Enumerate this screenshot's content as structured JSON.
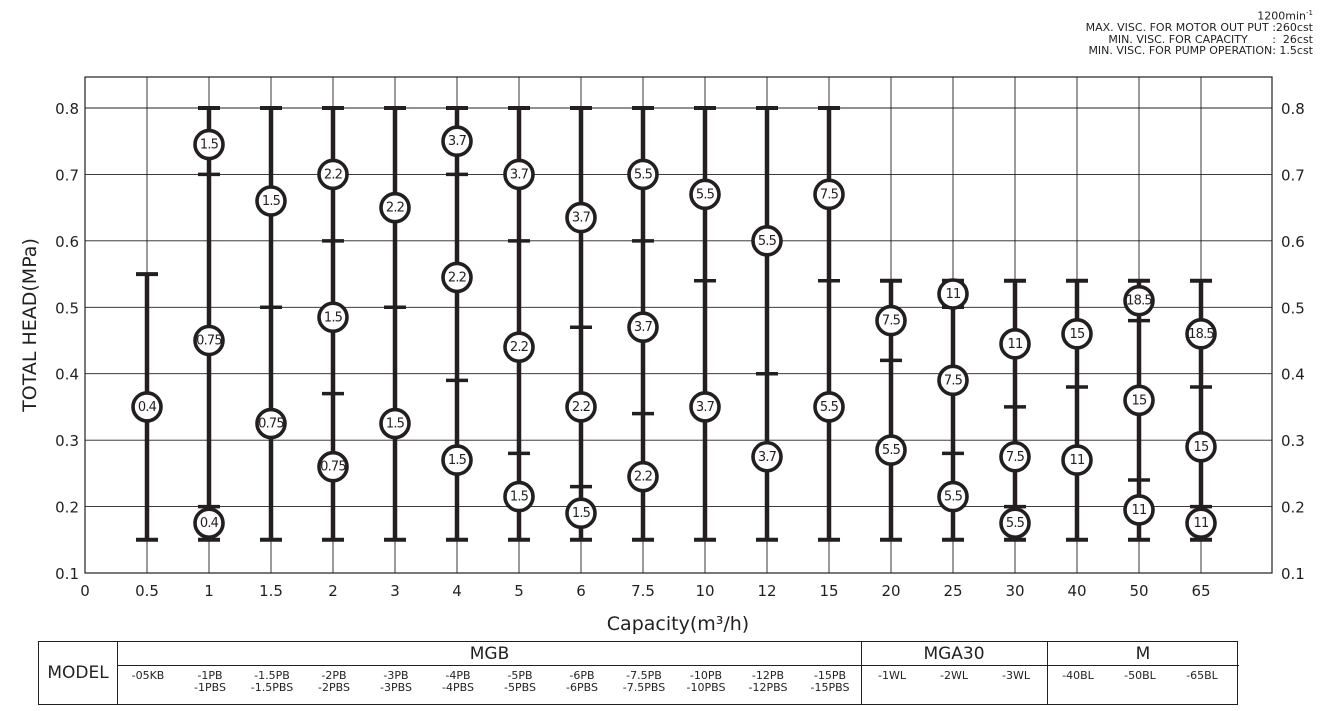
{
  "header": {
    "speed": "1200min",
    "speed_exp": "-1",
    "notes": [
      "MAX. VISC. FOR MOTOR OUT PUT :260cst",
      "MIN. VISC. FOR CAPACITY       :  26cst",
      "MIN. VISC. FOR PUMP OPERATION: 1.5cst"
    ]
  },
  "chart_data": {
    "type": "range-bar",
    "ylabel": "TOTAL HEAD(MPa)",
    "xlabel": "Capacity(m³/h)",
    "ylim": [
      0.1,
      0.8
    ],
    "yticks": [
      "0.1",
      "0.2",
      "0.3",
      "0.4",
      "0.5",
      "0.6",
      "0.7",
      "0.8"
    ],
    "xticks": [
      "0",
      "0.5",
      "1",
      "1.5",
      "2",
      "3",
      "4",
      "5",
      "6",
      "7.5",
      "10",
      "12",
      "15",
      "20",
      "25",
      "30",
      "40",
      "50",
      "65"
    ],
    "grid": true,
    "columns": [
      {
        "capacity": "0.5",
        "range": [
          0.15,
          0.55
        ],
        "dividers": [],
        "motors": [
          {
            "kw": "0.4",
            "head": 0.35
          }
        ]
      },
      {
        "capacity": "1",
        "range": [
          0.15,
          0.8
        ],
        "dividers": [
          0.2,
          0.7
        ],
        "motors": [
          {
            "kw": "0.4",
            "head": 0.175
          },
          {
            "kw": "0.75",
            "head": 0.45
          },
          {
            "kw": "1.5",
            "head": 0.745
          }
        ]
      },
      {
        "capacity": "1.5",
        "range": [
          0.15,
          0.8
        ],
        "dividers": [
          0.5
        ],
        "motors": [
          {
            "kw": "0.75",
            "head": 0.325
          },
          {
            "kw": "1.5",
            "head": 0.66
          }
        ]
      },
      {
        "capacity": "2",
        "range": [
          0.15,
          0.8
        ],
        "dividers": [
          0.37,
          0.6
        ],
        "motors": [
          {
            "kw": "0.75",
            "head": 0.26
          },
          {
            "kw": "1.5",
            "head": 0.485
          },
          {
            "kw": "2.2",
            "head": 0.7
          }
        ]
      },
      {
        "capacity": "3",
        "range": [
          0.15,
          0.8
        ],
        "dividers": [
          0.5
        ],
        "motors": [
          {
            "kw": "1.5",
            "head": 0.325
          },
          {
            "kw": "2.2",
            "head": 0.65
          }
        ]
      },
      {
        "capacity": "4",
        "range": [
          0.15,
          0.8
        ],
        "dividers": [
          0.39,
          0.7
        ],
        "motors": [
          {
            "kw": "1.5",
            "head": 0.27
          },
          {
            "kw": "2.2",
            "head": 0.545
          },
          {
            "kw": "3.7",
            "head": 0.75
          }
        ]
      },
      {
        "capacity": "5",
        "range": [
          0.15,
          0.8
        ],
        "dividers": [
          0.28,
          0.6
        ],
        "motors": [
          {
            "kw": "1.5",
            "head": 0.215
          },
          {
            "kw": "2.2",
            "head": 0.44
          },
          {
            "kw": "3.7",
            "head": 0.7
          }
        ]
      },
      {
        "capacity": "6",
        "range": [
          0.15,
          0.8
        ],
        "dividers": [
          0.23,
          0.47
        ],
        "motors": [
          {
            "kw": "1.5",
            "head": 0.19
          },
          {
            "kw": "2.2",
            "head": 0.35
          },
          {
            "kw": "3.7",
            "head": 0.635
          }
        ]
      },
      {
        "capacity": "7.5",
        "range": [
          0.15,
          0.8
        ],
        "dividers": [
          0.34,
          0.6
        ],
        "motors": [
          {
            "kw": "2.2",
            "head": 0.245
          },
          {
            "kw": "3.7",
            "head": 0.47
          },
          {
            "kw": "5.5",
            "head": 0.7
          }
        ]
      },
      {
        "capacity": "10",
        "range": [
          0.15,
          0.8
        ],
        "dividers": [
          0.54
        ],
        "motors": [
          {
            "kw": "3.7",
            "head": 0.35
          },
          {
            "kw": "5.5",
            "head": 0.67
          }
        ]
      },
      {
        "capacity": "12",
        "range": [
          0.15,
          0.8
        ],
        "dividers": [
          0.4
        ],
        "motors": [
          {
            "kw": "3.7",
            "head": 0.275
          },
          {
            "kw": "5.5",
            "head": 0.6
          }
        ]
      },
      {
        "capacity": "15",
        "range": [
          0.15,
          0.8
        ],
        "dividers": [
          0.54
        ],
        "motors": [
          {
            "kw": "5.5",
            "head": 0.35
          },
          {
            "kw": "7.5",
            "head": 0.67
          }
        ]
      },
      {
        "capacity": "20",
        "range": [
          0.15,
          0.54
        ],
        "dividers": [
          0.42
        ],
        "motors": [
          {
            "kw": "5.5",
            "head": 0.285
          },
          {
            "kw": "7.5",
            "head": 0.48
          }
        ]
      },
      {
        "capacity": "25",
        "range": [
          0.15,
          0.54
        ],
        "dividers": [
          0.28,
          0.5
        ],
        "motors": [
          {
            "kw": "5.5",
            "head": 0.215
          },
          {
            "kw": "7.5",
            "head": 0.39
          },
          {
            "kw": "11",
            "head": 0.52
          }
        ]
      },
      {
        "capacity": "30",
        "range": [
          0.15,
          0.54
        ],
        "dividers": [
          0.2,
          0.35
        ],
        "motors": [
          {
            "kw": "5.5",
            "head": 0.175
          },
          {
            "kw": "7.5",
            "head": 0.275
          },
          {
            "kw": "11",
            "head": 0.445
          }
        ]
      },
      {
        "capacity": "40",
        "range": [
          0.15,
          0.54
        ],
        "dividers": [
          0.38
        ],
        "motors": [
          {
            "kw": "11",
            "head": 0.27
          },
          {
            "kw": "15",
            "head": 0.46
          }
        ]
      },
      {
        "capacity": "50",
        "range": [
          0.15,
          0.54
        ],
        "dividers": [
          0.24,
          0.48
        ],
        "motors": [
          {
            "kw": "11",
            "head": 0.195
          },
          {
            "kw": "15",
            "head": 0.36
          },
          {
            "kw": "18.5",
            "head": 0.51
          }
        ]
      },
      {
        "capacity": "65",
        "range": [
          0.15,
          0.54
        ],
        "dividers": [
          0.2,
          0.38
        ],
        "motors": [
          {
            "kw": "11",
            "head": 0.175
          },
          {
            "kw": "15",
            "head": 0.29
          },
          {
            "kw": "18.5",
            "head": 0.46
          }
        ]
      }
    ]
  },
  "model_table": {
    "label": "MODEL",
    "groups": [
      {
        "name": "MGB",
        "models": [
          "-05KB",
          "-1PB\n-1PBS",
          "-1.5PB\n-1.5PBS",
          "-2PB\n-2PBS",
          "-3PB\n-3PBS",
          "-4PB\n-4PBS",
          "-5PB\n-5PBS",
          "-6PB\n-6PBS",
          "-7.5PB\n-7.5PBS",
          "-10PB\n-10PBS",
          "-12PB\n-12PBS",
          "-15PB\n-15PBS"
        ]
      },
      {
        "name": "MGA30",
        "models": [
          "-1WL",
          "-2WL",
          "-3WL"
        ]
      },
      {
        "name": "M",
        "models": [
          "-40BL",
          "-50BL",
          "-65BL"
        ]
      }
    ]
  }
}
